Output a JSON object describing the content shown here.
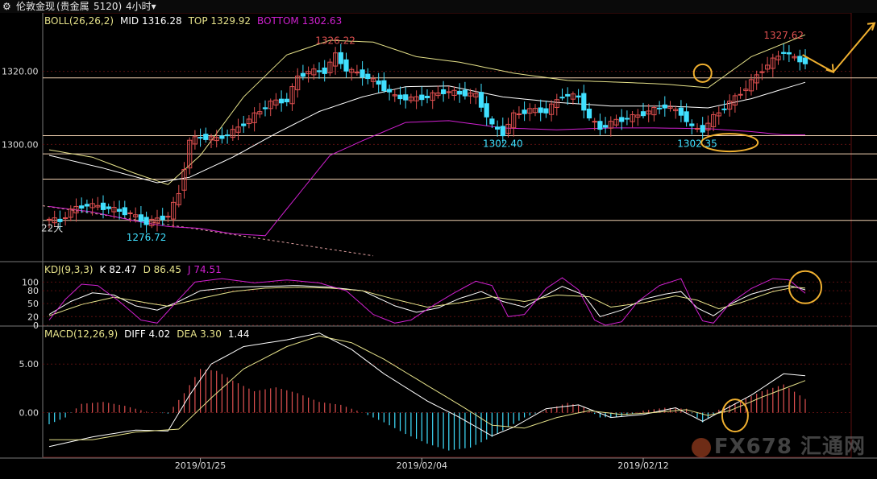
{
  "topbar": {
    "symbol_label": "伦敦金现",
    "market_label": "(贵金属",
    "code_label": "5120)",
    "period_label": "4小时",
    "dropdown_glyph": "▾"
  },
  "colors": {
    "bg": "#000000",
    "up_candle": "#e05050",
    "down_candle": "#40e0ff",
    "boll_mid": "#ffffff",
    "boll_top": "#e6e28a",
    "boll_bottom": "#d020d0",
    "k_line": "#ffffff",
    "d_line": "#e6e28a",
    "j_line": "#d020d0",
    "diff_line": "#ffffff",
    "dea_line": "#e6e28a",
    "hist_up": "#e05050",
    "hist_down": "#40e0ff",
    "annotation": "#f0b030",
    "hline": "#f0d0b0"
  },
  "boll_legend": {
    "name": "BOLL(26,26,2)",
    "mid": "MID 1316.28",
    "top": "TOP 1329.92",
    "bottom": "BOTTOM 1302.63"
  },
  "kdj_legend": {
    "name": "KDJ(9,3,3)",
    "k": "K 82.47",
    "d": "D 86.45",
    "j": "J 74.51"
  },
  "macd_legend": {
    "name": "MACD(12,26,9)",
    "diff": "DIFF 4.02",
    "dea": "DEA 3.30",
    "macd": "1.44"
  },
  "chart_data": {
    "type": "candlestick",
    "instrument": "伦敦金现",
    "period": "4小时",
    "x_ticks": [
      {
        "i": 28,
        "label": "2019/01/25"
      },
      {
        "i": 69,
        "label": "2019/02/04"
      },
      {
        "i": 110,
        "label": "2019/02/12"
      }
    ],
    "price_ylim": [
      1269,
      1336
    ],
    "price_ticks": [
      {
        "value": 1320,
        "label": "1320.00"
      },
      {
        "value": 1300,
        "label": "1300.00"
      }
    ],
    "horizontal_levels": [
      1318.2,
      1302.4,
      1297.4,
      1290.5,
      1279.2
    ],
    "annotations": [
      {
        "label": "1326.22",
        "at": 1326.22,
        "i": 53,
        "color": "up"
      },
      {
        "label": "1302.40",
        "at": 1302.4,
        "i": 84,
        "color": "down"
      },
      {
        "label": "1302.35",
        "at": 1302.35,
        "i": 120,
        "color": "down"
      },
      {
        "label": "1276.72",
        "at": 1276.72,
        "i": 18,
        "color": "down"
      },
      {
        "label": "1327.62",
        "at": 1327.62,
        "i": 136,
        "color": "up"
      },
      {
        "label": "22大",
        "at": 1279.2,
        "i": 0,
        "color": "plain"
      }
    ],
    "kdj_ylim": [
      0,
      110
    ],
    "kdj_ticks": [
      {
        "value": 100,
        "label": "100"
      },
      {
        "value": 80,
        "label": "80"
      },
      {
        "value": 50,
        "label": "50"
      },
      {
        "value": 20,
        "label": "20"
      },
      {
        "value": 0,
        "label": "0"
      }
    ],
    "macd_ylim": [
      -4.6,
      9.0
    ],
    "macd_ticks": [
      {
        "value": 5,
        "label": "5.00"
      },
      {
        "value": 0,
        "label": "0.00"
      }
    ],
    "close_anchors": [
      [
        0,
        1279.5
      ],
      [
        2,
        1279.0
      ],
      [
        4,
        1282.0
      ],
      [
        7,
        1283.5
      ],
      [
        11,
        1282.5
      ],
      [
        15,
        1281.0
      ],
      [
        18,
        1278.5
      ],
      [
        20,
        1279.5
      ],
      [
        22,
        1280.5
      ],
      [
        24,
        1286.5
      ],
      [
        26,
        1301.0
      ],
      [
        28,
        1302.0
      ],
      [
        31,
        1301.5
      ],
      [
        34,
        1303.5
      ],
      [
        38,
        1308.0
      ],
      [
        41,
        1311.5
      ],
      [
        44,
        1312.0
      ],
      [
        46,
        1318.5
      ],
      [
        48,
        1320.0
      ],
      [
        51,
        1320.0
      ],
      [
        53,
        1324.5
      ],
      [
        55,
        1320.5
      ],
      [
        58,
        1319.0
      ],
      [
        61,
        1316.5
      ],
      [
        64,
        1313.0
      ],
      [
        67,
        1312.5
      ],
      [
        70,
        1313.0
      ],
      [
        73,
        1314.5
      ],
      [
        76,
        1314.0
      ],
      [
        79,
        1313.5
      ],
      [
        82,
        1305.0
      ],
      [
        84,
        1303.0
      ],
      [
        86,
        1308.0
      ],
      [
        89,
        1309.5
      ],
      [
        92,
        1309.0
      ],
      [
        95,
        1313.5
      ],
      [
        98,
        1313.0
      ],
      [
        100,
        1307.0
      ],
      [
        102,
        1304.5
      ],
      [
        105,
        1306.5
      ],
      [
        108,
        1307.5
      ],
      [
        111,
        1309.0
      ],
      [
        114,
        1310.5
      ],
      [
        117,
        1308.5
      ],
      [
        119,
        1304.5
      ],
      [
        121,
        1304.0
      ],
      [
        123,
        1307.5
      ],
      [
        126,
        1311.5
      ],
      [
        129,
        1315.5
      ],
      [
        132,
        1320.5
      ],
      [
        134,
        1323.0
      ],
      [
        136,
        1325.5
      ],
      [
        138,
        1323.5
      ],
      [
        140,
        1322.5
      ]
    ],
    "boll_mid_anchors": [
      [
        0,
        1297.0
      ],
      [
        10,
        1293.5
      ],
      [
        20,
        1289.5
      ],
      [
        26,
        1291.0
      ],
      [
        34,
        1296.5
      ],
      [
        42,
        1303.0
      ],
      [
        50,
        1309.0
      ],
      [
        58,
        1313.0
      ],
      [
        66,
        1315.8
      ],
      [
        74,
        1316.0
      ],
      [
        84,
        1313.0
      ],
      [
        94,
        1311.5
      ],
      [
        104,
        1310.5
      ],
      [
        114,
        1310.5
      ],
      [
        122,
        1310.0
      ],
      [
        130,
        1312.5
      ],
      [
        140,
        1317.0
      ]
    ],
    "boll_top_anchors": [
      [
        0,
        1298.5
      ],
      [
        8,
        1296.5
      ],
      [
        16,
        1292.0
      ],
      [
        22,
        1289.0
      ],
      [
        28,
        1297.0
      ],
      [
        36,
        1313.0
      ],
      [
        44,
        1324.5
      ],
      [
        52,
        1328.5
      ],
      [
        60,
        1328.0
      ],
      [
        68,
        1324.0
      ],
      [
        76,
        1322.5
      ],
      [
        86,
        1319.5
      ],
      [
        96,
        1317.5
      ],
      [
        106,
        1317.0
      ],
      [
        114,
        1316.5
      ],
      [
        122,
        1315.5
      ],
      [
        130,
        1324.0
      ],
      [
        140,
        1330.0
      ]
    ],
    "boll_bottom_anchors": [
      [
        0,
        1283.0
      ],
      [
        8,
        1281.5
      ],
      [
        16,
        1279.0
      ],
      [
        22,
        1277.5
      ],
      [
        28,
        1277.0
      ],
      [
        34,
        1275.5
      ],
      [
        40,
        1275.0
      ],
      [
        46,
        1286.0
      ],
      [
        52,
        1297.0
      ],
      [
        58,
        1301.0
      ],
      [
        66,
        1306.0
      ],
      [
        74,
        1306.5
      ],
      [
        84,
        1304.5
      ],
      [
        94,
        1304.0
      ],
      [
        104,
        1304.5
      ],
      [
        112,
        1304.5
      ],
      [
        122,
        1304.3
      ],
      [
        130,
        1303.5
      ],
      [
        136,
        1302.6
      ],
      [
        140,
        1302.6
      ]
    ],
    "k_anchors": [
      [
        0,
        25
      ],
      [
        4,
        55
      ],
      [
        8,
        75
      ],
      [
        12,
        70
      ],
      [
        16,
        45
      ],
      [
        20,
        35
      ],
      [
        24,
        55
      ],
      [
        28,
        80
      ],
      [
        34,
        88
      ],
      [
        40,
        90
      ],
      [
        46,
        92
      ],
      [
        52,
        88
      ],
      [
        58,
        80
      ],
      [
        64,
        45
      ],
      [
        68,
        30
      ],
      [
        72,
        40
      ],
      [
        76,
        62
      ],
      [
        80,
        78
      ],
      [
        84,
        55
      ],
      [
        88,
        42
      ],
      [
        92,
        70
      ],
      [
        95,
        90
      ],
      [
        99,
        70
      ],
      [
        102,
        20
      ],
      [
        106,
        35
      ],
      [
        110,
        60
      ],
      [
        114,
        72
      ],
      [
        117,
        78
      ],
      [
        120,
        40
      ],
      [
        123,
        22
      ],
      [
        126,
        48
      ],
      [
        130,
        72
      ],
      [
        134,
        86
      ],
      [
        137,
        92
      ],
      [
        140,
        82
      ]
    ],
    "d_anchors": [
      [
        0,
        22
      ],
      [
        6,
        48
      ],
      [
        12,
        65
      ],
      [
        18,
        52
      ],
      [
        22,
        44
      ],
      [
        28,
        62
      ],
      [
        34,
        78
      ],
      [
        40,
        86
      ],
      [
        46,
        88
      ],
      [
        52,
        86
      ],
      [
        58,
        80
      ],
      [
        64,
        60
      ],
      [
        70,
        42
      ],
      [
        76,
        52
      ],
      [
        82,
        66
      ],
      [
        88,
        55
      ],
      [
        94,
        70
      ],
      [
        100,
        66
      ],
      [
        104,
        42
      ],
      [
        110,
        52
      ],
      [
        116,
        68
      ],
      [
        120,
        58
      ],
      [
        124,
        38
      ],
      [
        128,
        52
      ],
      [
        134,
        78
      ],
      [
        138,
        88
      ],
      [
        140,
        86
      ]
    ],
    "j_anchors": [
      [
        0,
        12
      ],
      [
        3,
        60
      ],
      [
        6,
        95
      ],
      [
        9,
        92
      ],
      [
        13,
        55
      ],
      [
        17,
        12
      ],
      [
        20,
        5
      ],
      [
        24,
        60
      ],
      [
        27,
        100
      ],
      [
        32,
        108
      ],
      [
        38,
        98
      ],
      [
        44,
        105
      ],
      [
        50,
        98
      ],
      [
        55,
        80
      ],
      [
        60,
        25
      ],
      [
        64,
        5
      ],
      [
        67,
        12
      ],
      [
        71,
        45
      ],
      [
        75,
        75
      ],
      [
        79,
        102
      ],
      [
        82,
        92
      ],
      [
        85,
        20
      ],
      [
        88,
        25
      ],
      [
        92,
        85
      ],
      [
        95,
        110
      ],
      [
        98,
        82
      ],
      [
        101,
        12
      ],
      [
        103,
        0
      ],
      [
        106,
        8
      ],
      [
        109,
        55
      ],
      [
        113,
        92
      ],
      [
        117,
        108
      ],
      [
        119,
        55
      ],
      [
        121,
        10
      ],
      [
        123,
        5
      ],
      [
        126,
        50
      ],
      [
        130,
        85
      ],
      [
        134,
        108
      ],
      [
        137,
        105
      ],
      [
        140,
        74
      ]
    ],
    "diff_anchors": [
      [
        0,
        -3.5
      ],
      [
        8,
        -2.5
      ],
      [
        16,
        -1.8
      ],
      [
        22,
        -1.9
      ],
      [
        26,
        1.8
      ],
      [
        30,
        5.0
      ],
      [
        36,
        6.8
      ],
      [
        44,
        7.5
      ],
      [
        50,
        8.2
      ],
      [
        56,
        6.5
      ],
      [
        62,
        4.0
      ],
      [
        70,
        1.2
      ],
      [
        76,
        -0.5
      ],
      [
        82,
        -2.4
      ],
      [
        86,
        -1.5
      ],
      [
        92,
        0.4
      ],
      [
        98,
        0.8
      ],
      [
        104,
        -0.5
      ],
      [
        110,
        -0.2
      ],
      [
        116,
        0.5
      ],
      [
        121,
        -0.9
      ],
      [
        125,
        0.3
      ],
      [
        130,
        1.8
      ],
      [
        136,
        4.0
      ],
      [
        140,
        3.8
      ]
    ],
    "dea_anchors": [
      [
        0,
        -2.8
      ],
      [
        8,
        -2.8
      ],
      [
        16,
        -2.0
      ],
      [
        24,
        -1.7
      ],
      [
        30,
        1.5
      ],
      [
        36,
        4.5
      ],
      [
        44,
        6.8
      ],
      [
        50,
        7.9
      ],
      [
        56,
        7.2
      ],
      [
        62,
        5.5
      ],
      [
        70,
        2.8
      ],
      [
        76,
        0.8
      ],
      [
        82,
        -1.3
      ],
      [
        88,
        -1.6
      ],
      [
        94,
        -0.5
      ],
      [
        100,
        0.2
      ],
      [
        106,
        -0.2
      ],
      [
        112,
        0.0
      ],
      [
        118,
        0.3
      ],
      [
        122,
        -0.3
      ],
      [
        126,
        0.2
      ],
      [
        132,
        1.6
      ],
      [
        140,
        3.3
      ]
    ],
    "macd_hist_anchors": [
      [
        0,
        -1.2
      ],
      [
        3,
        -0.5
      ],
      [
        6,
        0.9
      ],
      [
        10,
        1.1
      ],
      [
        14,
        0.7
      ],
      [
        18,
        0.1
      ],
      [
        22,
        -0.1
      ],
      [
        25,
        2.0
      ],
      [
        28,
        4.5
      ],
      [
        31,
        4.3
      ],
      [
        34,
        3.3
      ],
      [
        38,
        2.2
      ],
      [
        42,
        2.6
      ],
      [
        46,
        2.0
      ],
      [
        50,
        1.1
      ],
      [
        54,
        0.8
      ],
      [
        58,
        0.0
      ],
      [
        62,
        -1.0
      ],
      [
        66,
        -2.2
      ],
      [
        70,
        -3.2
      ],
      [
        74,
        -3.9
      ],
      [
        78,
        -3.6
      ],
      [
        82,
        -2.5
      ],
      [
        85,
        -1.5
      ],
      [
        88,
        -0.5
      ],
      [
        92,
        0.3
      ],
      [
        96,
        1.0
      ],
      [
        99,
        0.6
      ],
      [
        102,
        -0.5
      ],
      [
        106,
        -0.4
      ],
      [
        110,
        0.2
      ],
      [
        114,
        0.5
      ],
      [
        118,
        0.4
      ],
      [
        121,
        -1.0
      ],
      [
        124,
        0.3
      ],
      [
        128,
        1.2
      ],
      [
        132,
        2.2
      ],
      [
        136,
        2.9
      ],
      [
        140,
        1.4
      ]
    ]
  },
  "watermark": {
    "text": "FX678 汇通网"
  }
}
